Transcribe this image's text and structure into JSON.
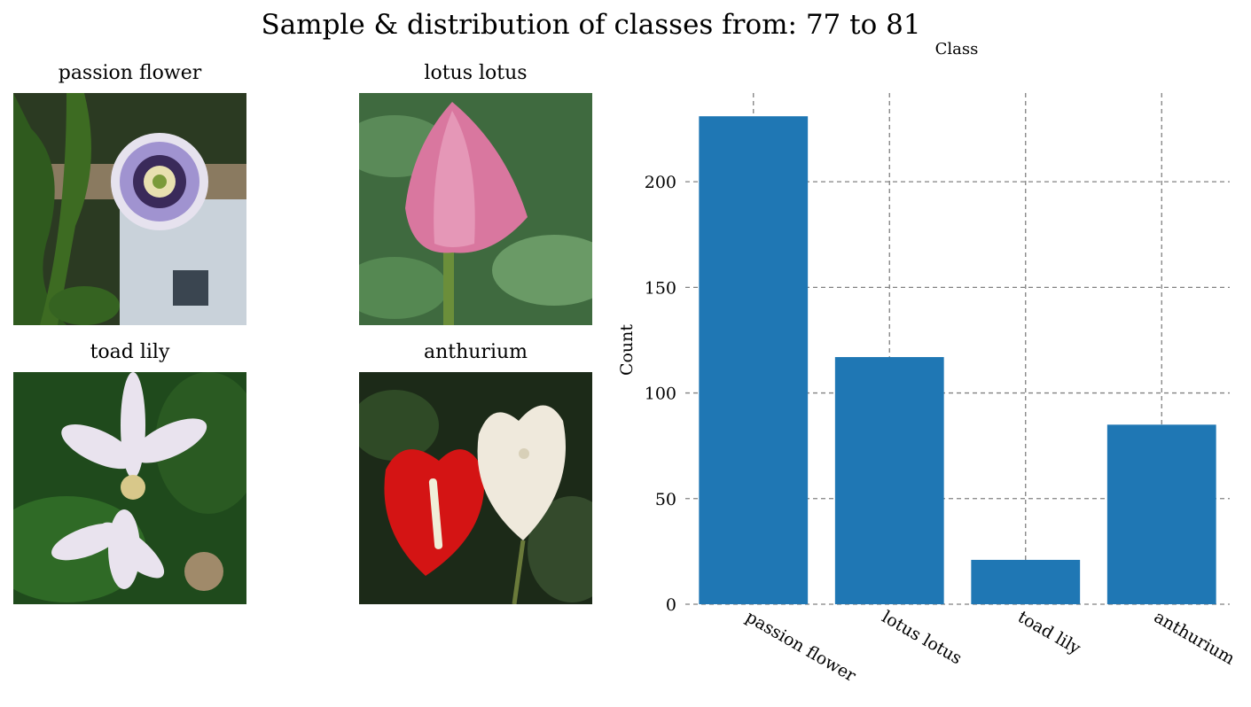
{
  "figure": {
    "title": "Sample & distribution of classes from: 77 to 81"
  },
  "samples": [
    {
      "label": "passion flower",
      "icon": "passion-flower-photo"
    },
    {
      "label": "lotus lotus",
      "icon": "lotus-bud-photo"
    },
    {
      "label": "toad lily",
      "icon": "toad-lily-photo"
    },
    {
      "label": "anthurium",
      "icon": "anthurium-photo"
    }
  ],
  "chart_data": {
    "type": "bar",
    "categories": [
      "passion flower",
      "lotus lotus",
      "toad lily",
      "anthurium"
    ],
    "values": [
      231,
      117,
      21,
      85
    ],
    "xlabel": "Class",
    "ylabel": "Count",
    "ylim": [
      0,
      242
    ],
    "yticks": [
      0,
      50,
      100,
      150,
      200
    ],
    "grid": true,
    "xlabel_position": "top",
    "bar_color": "#1f77b4",
    "grid_color": "#808080"
  }
}
